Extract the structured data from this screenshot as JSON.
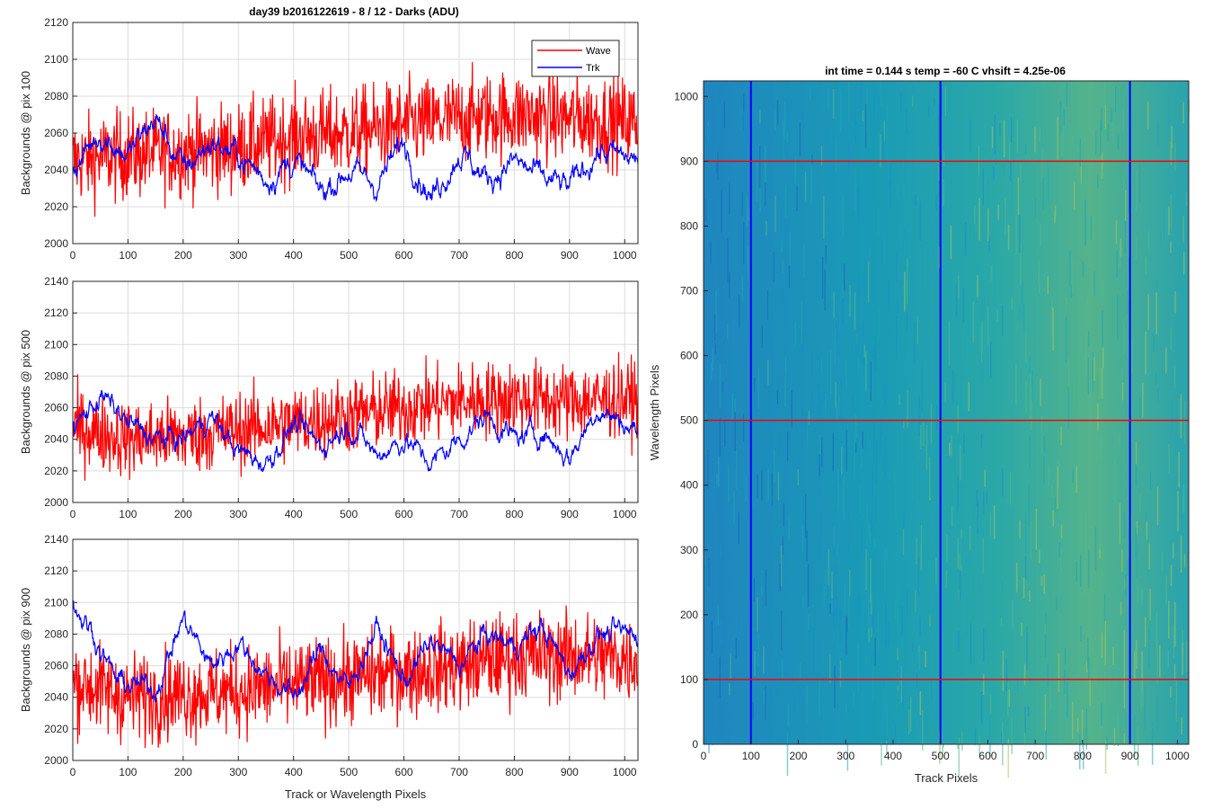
{
  "figure_title": "day39 b2016122619 - 8 / 12 - Darks (ADU)",
  "colors": {
    "wave": "#ff0000",
    "trk": "#0000ff",
    "grid": "#dcdcdc",
    "axis": "#262626"
  },
  "chart_data": [
    {
      "type": "line",
      "title": "day39 b2016122619 - 8 / 12 - Darks (ADU)",
      "xlabel": "",
      "ylabel": "Backgrounds @ pix 100",
      "xlim": [
        0,
        1024
      ],
      "ylim": [
        2000,
        2120
      ],
      "xticks": [
        0,
        100,
        200,
        300,
        400,
        500,
        600,
        700,
        800,
        900,
        1000
      ],
      "yticks": [
        2000,
        2020,
        2040,
        2060,
        2080,
        2100,
        2120
      ],
      "grid": true,
      "legend": {
        "placement": "top-right",
        "entries": [
          "Wave",
          "Trk"
        ]
      },
      "series": [
        {
          "name": "Wave",
          "color": "#ff0000",
          "x": [
            0,
            100,
            200,
            300,
            400,
            500,
            600,
            700,
            800,
            900,
            1024
          ],
          "values": [
            2045,
            2048,
            2050,
            2052,
            2058,
            2060,
            2064,
            2068,
            2070,
            2068,
            2066
          ]
        },
        {
          "name": "Trk",
          "color": "#0000ff",
          "x": [
            0,
            50,
            100,
            150,
            200,
            250,
            300,
            350,
            400,
            450,
            500,
            550,
            600,
            650,
            700,
            750,
            800,
            850,
            900,
            950,
            1024
          ],
          "values": [
            2040,
            2060,
            2048,
            2068,
            2040,
            2055,
            2048,
            2035,
            2045,
            2028,
            2040,
            2032,
            2055,
            2025,
            2050,
            2035,
            2045,
            2035,
            2030,
            2050,
            2045
          ]
        }
      ]
    },
    {
      "type": "line",
      "xlabel": "",
      "ylabel": "Backgrounds @ pix 500",
      "xlim": [
        0,
        1024
      ],
      "ylim": [
        2000,
        2140
      ],
      "xticks": [
        0,
        100,
        200,
        300,
        400,
        500,
        600,
        700,
        800,
        900,
        1000
      ],
      "yticks": [
        2000,
        2020,
        2040,
        2060,
        2080,
        2100,
        2120,
        2140
      ],
      "grid": true,
      "series": [
        {
          "name": "Wave",
          "color": "#ff0000",
          "x": [
            0,
            100,
            200,
            300,
            400,
            500,
            600,
            700,
            800,
            900,
            1024
          ],
          "values": [
            2048,
            2040,
            2042,
            2046,
            2050,
            2055,
            2060,
            2064,
            2066,
            2064,
            2066
          ]
        },
        {
          "name": "Trk",
          "color": "#0000ff",
          "x": [
            0,
            50,
            100,
            150,
            200,
            250,
            300,
            350,
            400,
            450,
            500,
            550,
            600,
            650,
            700,
            750,
            800,
            850,
            900,
            950,
            1024
          ],
          "values": [
            2045,
            2068,
            2050,
            2040,
            2040,
            2055,
            2032,
            2025,
            2050,
            2035,
            2050,
            2030,
            2040,
            2025,
            2040,
            2055,
            2040,
            2045,
            2028,
            2060,
            2045
          ]
        }
      ]
    },
    {
      "type": "line",
      "xlabel": "Track or Wavelength Pixels",
      "ylabel": "Backgrounds @ pix 900",
      "xlim": [
        0,
        1024
      ],
      "ylim": [
        2000,
        2140
      ],
      "xticks": [
        0,
        100,
        200,
        300,
        400,
        500,
        600,
        700,
        800,
        900,
        1000
      ],
      "yticks": [
        2000,
        2020,
        2040,
        2060,
        2080,
        2100,
        2120,
        2140
      ],
      "grid": true,
      "series": [
        {
          "name": "Wave",
          "color": "#ff0000",
          "x": [
            0,
            100,
            200,
            300,
            400,
            500,
            600,
            700,
            800,
            900,
            1024
          ],
          "values": [
            2050,
            2040,
            2042,
            2044,
            2048,
            2052,
            2056,
            2060,
            2066,
            2066,
            2064
          ]
        },
        {
          "name": "Trk",
          "color": "#0000ff",
          "x": [
            0,
            30,
            80,
            150,
            200,
            250,
            300,
            350,
            400,
            450,
            500,
            550,
            600,
            650,
            700,
            750,
            800,
            850,
            900,
            950,
            1024
          ],
          "values": [
            2098,
            2085,
            2050,
            2045,
            2090,
            2060,
            2075,
            2055,
            2040,
            2070,
            2045,
            2085,
            2050,
            2075,
            2060,
            2080,
            2072,
            2085,
            2055,
            2080,
            2080
          ]
        }
      ]
    },
    {
      "type": "heatmap",
      "title": "int time = 0.144 s   temp = -60 C   vhsift = 4.25e-06",
      "xlabel": "Track Pixels",
      "ylabel": "Wavelength Pixels",
      "xlim": [
        0,
        1024
      ],
      "ylim": [
        0,
        1024
      ],
      "xticks": [
        0,
        100,
        200,
        300,
        400,
        500,
        600,
        700,
        800,
        900,
        1000
      ],
      "yticks": [
        0,
        100,
        200,
        300,
        400,
        500,
        600,
        700,
        800,
        900,
        1000
      ],
      "colormap": [
        "#1f77b4",
        "#1a9bb8",
        "#3bb3a0",
        "#8fc060"
      ],
      "vertical_marker_lines_x": [
        100,
        500,
        900
      ],
      "vertical_marker_color": "#0000ff",
      "horizontal_marker_lines_y": [
        100,
        500,
        900
      ],
      "horizontal_marker_color": "#ff0000"
    }
  ]
}
